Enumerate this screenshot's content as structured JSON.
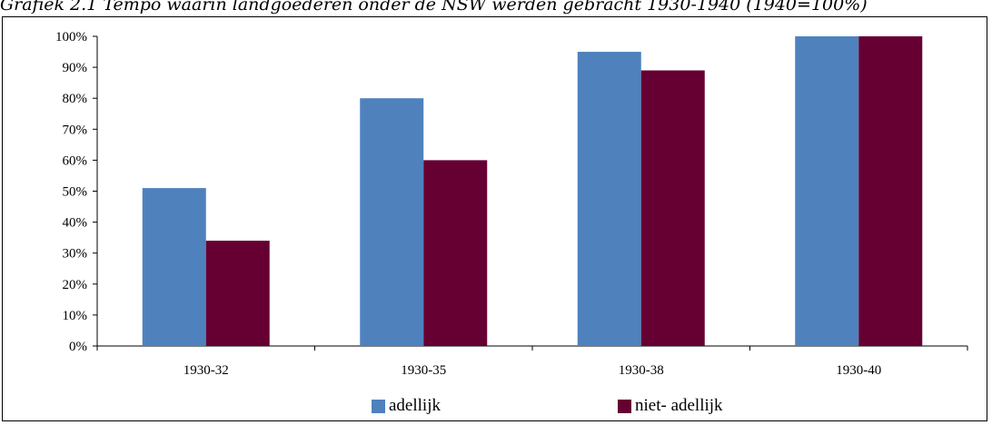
{
  "chart_data": {
    "type": "bar",
    "title": "Grafiek 2.1 Tempo waarin landgoederen onder de NSW werden gebracht 1930-1940 (1940=100%)",
    "categories": [
      "1930-32",
      "1930-35",
      "1930-38",
      "1930-40"
    ],
    "series": [
      {
        "name": "adellijk",
        "color": "#4f81bd",
        "values": [
          51,
          80,
          95,
          100
        ]
      },
      {
        "name": "niet- adellijk",
        "color": "#660033",
        "values": [
          34,
          60,
          89,
          100
        ]
      }
    ],
    "ylim": [
      0,
      100
    ],
    "yticks": [
      "0%",
      "10%",
      "20%",
      "30%",
      "40%",
      "50%",
      "60%",
      "70%",
      "80%",
      "90%",
      "100%"
    ],
    "grid": false,
    "legend": "bottom"
  }
}
